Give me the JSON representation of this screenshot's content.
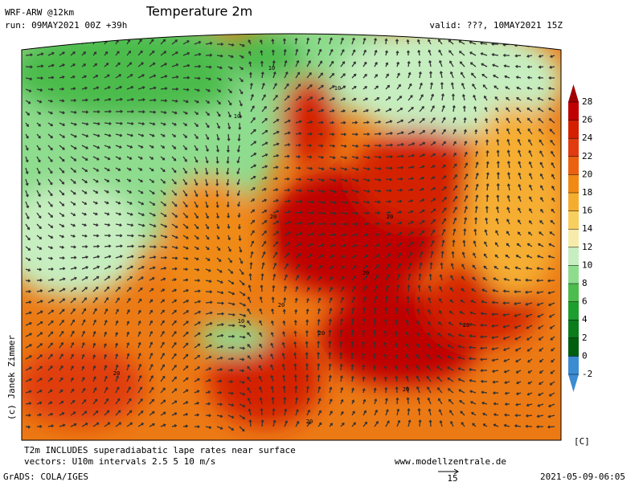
{
  "header": {
    "model": "WRF-ARW @12km",
    "title": "Temperature 2m",
    "run": "run: 09MAY2021 00Z +39h",
    "valid": "valid: ???, 10MAY2021 15Z"
  },
  "map": {
    "copyright": "(c) Janek Zimmer",
    "contour_labels": [
      "10",
      "10",
      "10",
      "20",
      "20",
      "20",
      "20",
      "20",
      "10",
      "20",
      "20",
      "20",
      "20"
    ]
  },
  "colorbar": {
    "ticks": [
      28,
      26,
      24,
      22,
      20,
      18,
      16,
      14,
      12,
      10,
      8,
      6,
      4,
      2,
      0,
      -2
    ],
    "unit": "[C]",
    "colors": [
      "#a00000",
      "#bf0000",
      "#d42000",
      "#e03c10",
      "#ea6210",
      "#f08a14",
      "#f5ad30",
      "#f8cf5e",
      "#f6ebaa",
      "#c6eec0",
      "#8edc8e",
      "#4cbc4c",
      "#1e9e2e",
      "#0a7c1c",
      "#005e10",
      "#3c8cd2",
      "#3c8cd2"
    ]
  },
  "footer": {
    "note": "T2m INCLUDES superadiabatic lape rates near surface",
    "vectors": "vectors: U10m intervals 2.5 5 10 m/s",
    "website": "www.modellzentrale.de",
    "grads": "GrADS: COLA/IGES",
    "scale": "15",
    "timestamp": "2021-05-09-06:05"
  }
}
